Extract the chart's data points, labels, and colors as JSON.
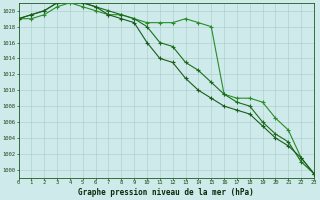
{
  "title": "Graphe pression niveau de la mer (hPa)",
  "bg_color": "#ceeaea",
  "grid_color": "#aacccc",
  "line_color_dark": "#1a5c1a",
  "line_color_mid": "#1a6e1a",
  "line_color_light": "#2a8c2a",
  "x": [
    0,
    1,
    2,
    3,
    4,
    5,
    6,
    7,
    8,
    9,
    10,
    11,
    12,
    13,
    14,
    15,
    16,
    17,
    18,
    19,
    20,
    21,
    22,
    23
  ],
  "y_top": [
    1019.0,
    1019.0,
    1019.5,
    1020.5,
    1021.0,
    1020.5,
    1020.0,
    1019.5,
    1019.5,
    1019.0,
    1018.5,
    1018.5,
    1018.5,
    1019.0,
    1018.5,
    1018.0,
    1009.5,
    1009.0,
    1009.0,
    1008.5,
    1006.5,
    1005.0,
    1001.5,
    999.5
  ],
  "y_mid": [
    1019.0,
    1019.5,
    1020.0,
    1021.0,
    1021.5,
    1021.0,
    1020.5,
    1020.0,
    1019.5,
    1019.0,
    1018.0,
    1016.0,
    1015.5,
    1013.5,
    1012.5,
    1011.0,
    1009.5,
    1008.5,
    1008.0,
    1006.0,
    1004.5,
    1003.5,
    1001.0,
    999.5
  ],
  "y_bot": [
    1019.0,
    1019.5,
    1020.0,
    1021.0,
    1021.5,
    1021.0,
    1020.5,
    1019.5,
    1019.0,
    1018.5,
    1016.0,
    1014.0,
    1013.5,
    1011.5,
    1010.0,
    1009.0,
    1008.0,
    1007.5,
    1007.0,
    1005.5,
    1004.0,
    1003.0,
    1001.5,
    999.5
  ],
  "ylim": [
    999,
    1021
  ],
  "xlim": [
    0,
    23
  ],
  "yticks": [
    1000,
    1002,
    1004,
    1006,
    1008,
    1010,
    1012,
    1014,
    1016,
    1018,
    1020
  ],
  "xticks": [
    0,
    1,
    2,
    3,
    4,
    5,
    6,
    7,
    8,
    9,
    10,
    11,
    12,
    13,
    14,
    15,
    16,
    17,
    18,
    19,
    20,
    21,
    22,
    23
  ],
  "marker": "+",
  "markersize": 3,
  "linewidth": 0.8
}
